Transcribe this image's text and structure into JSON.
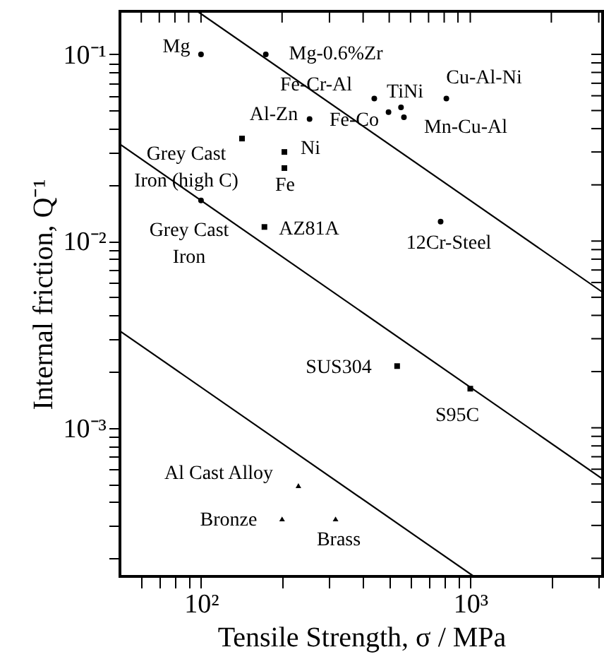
{
  "chart_data": {
    "type": "scatter",
    "xlabel": "Tensile Strength, σ / MPa",
    "ylabel": "Internal friction, Q⁻¹",
    "log": "xy",
    "grid": false,
    "xlim": [
      50,
      3100
    ],
    "ylim": [
      0.00016,
      0.17
    ],
    "xticks": [
      {
        "value": 60,
        "label": null
      },
      {
        "value": 70,
        "label": null
      },
      {
        "value": 80,
        "label": null
      },
      {
        "value": 90,
        "label": null
      },
      {
        "value": 100,
        "label": "10²"
      },
      {
        "value": 200,
        "label": null
      },
      {
        "value": 300,
        "label": null
      },
      {
        "value": 400,
        "label": null
      },
      {
        "value": 500,
        "label": null
      },
      {
        "value": 600,
        "label": null
      },
      {
        "value": 700,
        "label": null
      },
      {
        "value": 800,
        "label": null
      },
      {
        "value": 900,
        "label": null
      },
      {
        "value": 1000,
        "label": "10³"
      },
      {
        "value": 2000,
        "label": null
      },
      {
        "value": 3000,
        "label": null
      }
    ],
    "yticks": [
      {
        "value": 0.0002,
        "label": null
      },
      {
        "value": 0.0003,
        "label": null
      },
      {
        "value": 0.0004,
        "label": null
      },
      {
        "value": 0.0005,
        "label": null
      },
      {
        "value": 0.0006,
        "label": null
      },
      {
        "value": 0.0007,
        "label": null
      },
      {
        "value": 0.0008,
        "label": null
      },
      {
        "value": 0.0009,
        "label": null
      },
      {
        "value": 0.001,
        "label": "10⁻³"
      },
      {
        "value": 0.002,
        "label": null
      },
      {
        "value": 0.003,
        "label": null
      },
      {
        "value": 0.004,
        "label": null
      },
      {
        "value": 0.005,
        "label": null
      },
      {
        "value": 0.006,
        "label": null
      },
      {
        "value": 0.007,
        "label": null
      },
      {
        "value": 0.008,
        "label": null
      },
      {
        "value": 0.009,
        "label": null
      },
      {
        "value": 0.01,
        "label": "10⁻²"
      },
      {
        "value": 0.02,
        "label": null
      },
      {
        "value": 0.03,
        "label": null
      },
      {
        "value": 0.04,
        "label": null
      },
      {
        "value": 0.05,
        "label": null
      },
      {
        "value": 0.06,
        "label": null
      },
      {
        "value": 0.07,
        "label": null
      },
      {
        "value": 0.08,
        "label": null
      },
      {
        "value": 0.09,
        "label": null
      },
      {
        "value": 0.1,
        "label": "10⁻¹"
      }
    ],
    "series": [
      {
        "marker": "circle",
        "color": "#000000",
        "x": [
          100,
          174,
          440,
          497,
          553,
          567,
          815,
          253,
          776,
          100
        ],
        "values": [
          0.1,
          0.1,
          0.058,
          0.049,
          0.052,
          0.046,
          0.058,
          0.045,
          0.0127,
          0.0165
        ]
      },
      {
        "marker": "square",
        "color": "#000000",
        "x": [
          142,
          204,
          204,
          172,
          535,
          1000
        ],
        "values": [
          0.0354,
          0.03,
          0.0246,
          0.0119,
          0.00214,
          0.00162
        ]
      },
      {
        "marker": "triangle",
        "color": "#000000",
        "x": [
          230,
          200,
          316
        ],
        "values": [
          0.00049,
          0.000325,
          0.000325
        ]
      },
      {
        "type": "line",
        "line_style": "solid",
        "color": "#000000",
        "x": [
          97,
          3100
        ],
        "values": [
          0.17,
          0.00532
        ]
      },
      {
        "type": "line",
        "line_style": "solid",
        "color": "#000000",
        "x": [
          50,
          3100
        ],
        "values": [
          0.033,
          0.000532
        ]
      },
      {
        "type": "line",
        "line_style": "solid",
        "color": "#000000",
        "x": [
          50,
          1031
        ],
        "values": [
          0.0033,
          0.00016
        ]
      }
    ],
    "annotations": [
      "Mg",
      "Mg-0.6%Zr",
      "Fe-Cr-Al",
      "TiNi",
      "Cu-Al-Ni",
      "Al-Zn",
      "Fe-Co",
      "Mn-Cu-Al",
      "Grey Cast\nIron (high C)",
      "Ni",
      "Fe",
      "Grey Cast\nIron",
      "AZ81A",
      "12Cr-Steel",
      "SUS304",
      "S95C",
      "Al Cast Alloy",
      "Bronze",
      "Brass"
    ]
  }
}
